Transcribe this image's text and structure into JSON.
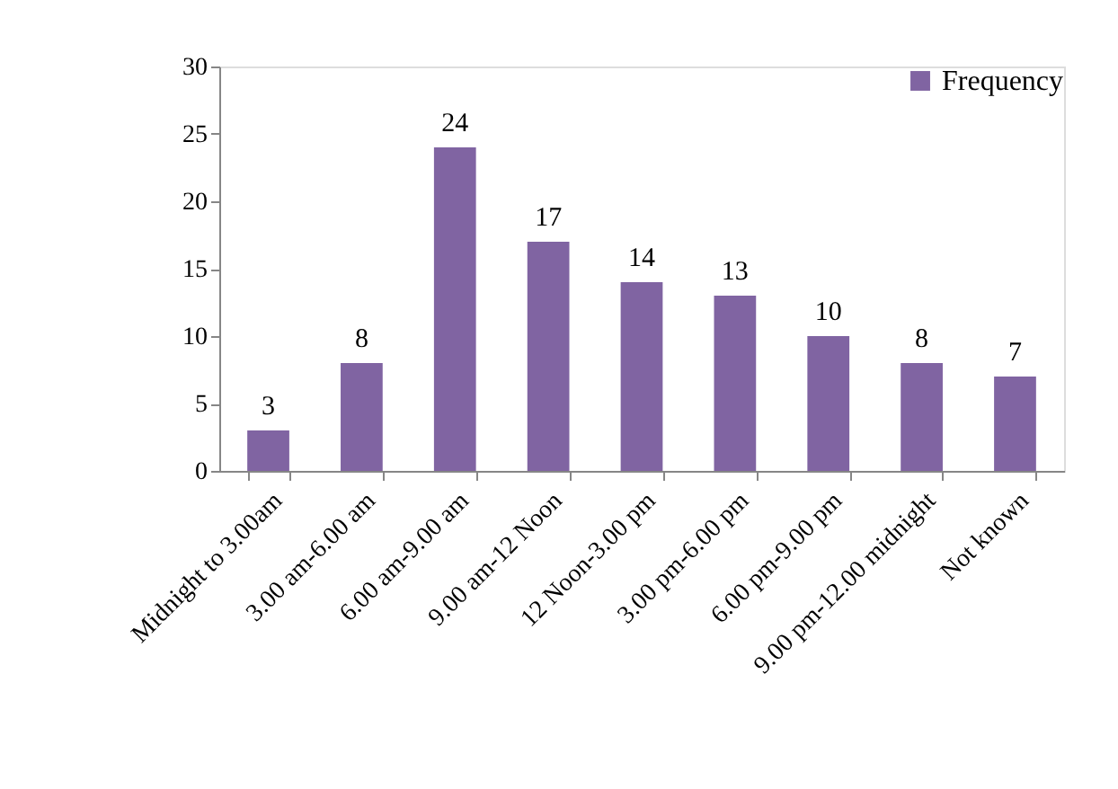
{
  "chart_data": {
    "type": "bar",
    "categories": [
      "Midnight to 3.00am",
      "3.00 am-6.00 am",
      "6.00 am-9.00 am",
      "9.00 am-12 Noon",
      "12 Noon-3.00 pm",
      "3.00 pm-6.00 pm",
      "6.00 pm-9.00 pm",
      "9.00 pm-12.00 midnight",
      "Not known"
    ],
    "series": [
      {
        "name": "Frequency",
        "color": "#8064a2",
        "values": [
          3,
          8,
          24,
          17,
          14,
          13,
          10,
          8,
          7
        ]
      }
    ],
    "ylim": [
      0,
      30
    ],
    "yticks": [
      0,
      5,
      10,
      15,
      20,
      25,
      30
    ],
    "data_labels": true,
    "grid": false,
    "legend": "top right"
  }
}
